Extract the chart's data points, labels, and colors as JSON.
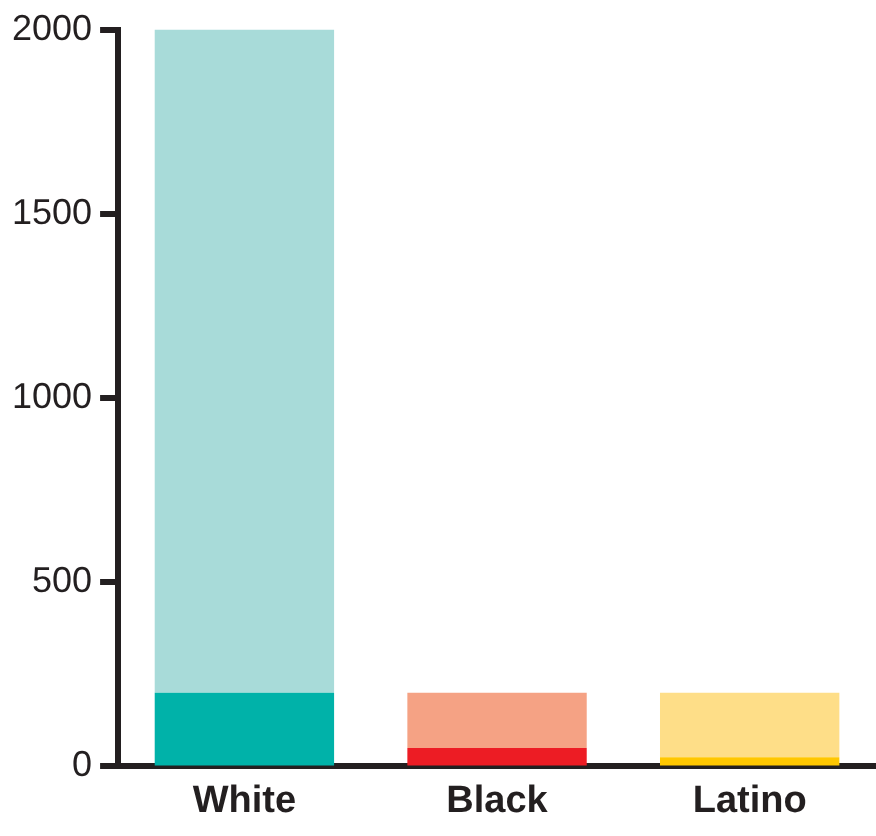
{
  "chart_data": {
    "type": "bar",
    "stacked": true,
    "categories": [
      "White",
      "Black",
      "Latino"
    ],
    "series": [
      {
        "colors": [
          "#00b2a9",
          "#ed1c24",
          "#ffc700"
        ],
        "values": [
          200,
          50,
          25
        ]
      },
      {
        "colors": [
          "#a8dbd9",
          "#f5a284",
          "#fede88"
        ],
        "values": [
          1800,
          150,
          175
        ]
      }
    ],
    "ylim": [
      0,
      2000
    ],
    "yticks": [
      0,
      500,
      1000,
      1500,
      2000
    ],
    "grid": false,
    "legend": false
  }
}
